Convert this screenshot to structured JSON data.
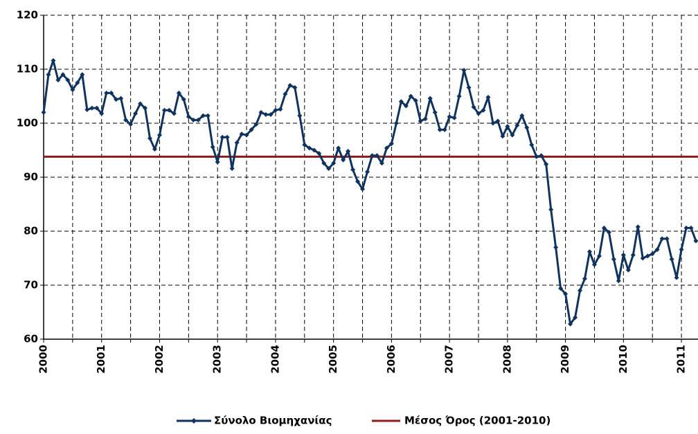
{
  "chart_data": {
    "type": "line",
    "categories": [
      "2000",
      null,
      null,
      null,
      null,
      null,
      null,
      null,
      null,
      null,
      null,
      null,
      "2001",
      null,
      null,
      null,
      null,
      null,
      null,
      null,
      null,
      null,
      null,
      null,
      "2002",
      null,
      null,
      null,
      null,
      null,
      null,
      null,
      null,
      null,
      null,
      null,
      "2003",
      null,
      null,
      null,
      null,
      null,
      null,
      null,
      null,
      null,
      null,
      null,
      "2004",
      null,
      null,
      null,
      null,
      null,
      null,
      null,
      null,
      null,
      null,
      null,
      "2005",
      null,
      null,
      null,
      null,
      null,
      null,
      null,
      null,
      null,
      null,
      null,
      "2006",
      null,
      null,
      null,
      null,
      null,
      null,
      null,
      null,
      null,
      null,
      null,
      "2007",
      null,
      null,
      null,
      null,
      null,
      null,
      null,
      null,
      null,
      null,
      null,
      "2008",
      null,
      null,
      null,
      null,
      null,
      null,
      null,
      null,
      null,
      null,
      null,
      "2009",
      null,
      null,
      null,
      null,
      null,
      null,
      null,
      null,
      null,
      null,
      null,
      "2010",
      null,
      null,
      null,
      null,
      null,
      null,
      null,
      null,
      null,
      null,
      null,
      "2011",
      null,
      null,
      null
    ],
    "series": [
      {
        "name": "Σύνολο Βιομηχανίας",
        "color": "#0f3361",
        "values": [
          102,
          109,
          111.6,
          108,
          109,
          108,
          106.2,
          107.5,
          109,
          102.5,
          102.8,
          102.8,
          101.8,
          105.6,
          105.6,
          104.4,
          104.6,
          100.6,
          99.8,
          101.8,
          103.6,
          102.8,
          97.2,
          95.2,
          97.8,
          102.4,
          102.4,
          101.8,
          105.6,
          104.4,
          101.2,
          100.6,
          100.6,
          101.4,
          101.4,
          95.6,
          92.8,
          97.4,
          97.4,
          91.6,
          96.4,
          98.0,
          97.8,
          98.8,
          99.8,
          102.0,
          101.6,
          101.6,
          102.4,
          102.6,
          105.4,
          107.0,
          106.6,
          101.4,
          96.0,
          95.4,
          95.0,
          94.4,
          92.6,
          91.6,
          92.6,
          95.4,
          93.2,
          94.8,
          91.4,
          89.2,
          87.8,
          91.0,
          94.0,
          94.0,
          92.6,
          95.4,
          96.2,
          100.0,
          104.0,
          103.2,
          105.0,
          104.2,
          100.4,
          100.8,
          104.6,
          102.0,
          98.8,
          98.8,
          101.2,
          101.0,
          105.0,
          109.8,
          106.6,
          103.0,
          101.8,
          102.4,
          104.8,
          100.0,
          100.4,
          97.6,
          99.4,
          97.8,
          99.6,
          101.4,
          99.2,
          96.0,
          93.8,
          94.0,
          92.4,
          84.0,
          77.0,
          69.4,
          68.4,
          62.8,
          64.0,
          69.0,
          71.2,
          76.2,
          73.8,
          75.4,
          80.6,
          79.8,
          74.8,
          70.8,
          75.6,
          72.8,
          75.6,
          80.8,
          75.0,
          75.4,
          75.8,
          76.6,
          78.6,
          78.6,
          74.8,
          71.4,
          76.6,
          80.6,
          80.6,
          78.2
        ]
      }
    ],
    "reference": {
      "name": "Μέσος Όρος (2001-2010)",
      "color": "#8b1a1a",
      "value": 93.8
    },
    "ylim": [
      60,
      120
    ],
    "yticks": [
      60,
      70,
      80,
      90,
      100,
      110,
      120
    ],
    "grid": true
  }
}
